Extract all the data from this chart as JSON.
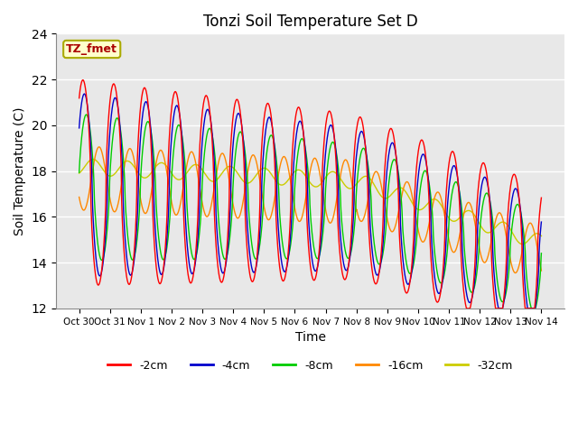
{
  "title": "Tonzi Soil Temperature Set D",
  "xlabel": "Time",
  "ylabel": "Soil Temperature (C)",
  "ylim": [
    12,
    24
  ],
  "yticks": [
    12,
    14,
    16,
    18,
    20,
    22,
    24
  ],
  "annotation_text": "TZ_fmet",
  "annotation_color": "#aa0000",
  "annotation_bg": "#ffffcc",
  "annotation_border": "#aaaa00",
  "legend_labels": [
    "-2cm",
    "-4cm",
    "-8cm",
    "-16cm",
    "-32cm"
  ],
  "line_colors": [
    "#ff0000",
    "#0000cc",
    "#00cc00",
    "#ff8800",
    "#cccc00"
  ],
  "bg_color": "#e8e8e8",
  "fig_color": "#ffffff",
  "n_points": 2000
}
